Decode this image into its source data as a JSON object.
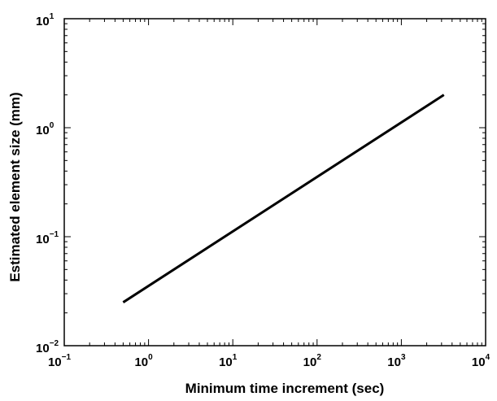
{
  "chart_data": {
    "type": "line",
    "xscale": "log",
    "yscale": "log",
    "xlim": [
      0.1,
      10000
    ],
    "ylim": [
      0.01,
      10
    ],
    "xlabel": "Minimum time increment (sec)",
    "ylabel": "Estimated element size (mm)",
    "grid": false,
    "line_color": "#000000",
    "x_ticks": [
      {
        "base": "10",
        "exp": "−1"
      },
      {
        "base": "10",
        "exp": "0"
      },
      {
        "base": "10",
        "exp": "1"
      },
      {
        "base": "10",
        "exp": "2"
      },
      {
        "base": "10",
        "exp": "3"
      },
      {
        "base": "10",
        "exp": "4"
      }
    ],
    "y_ticks": [
      {
        "base": "10",
        "exp": "−2"
      },
      {
        "base": "10",
        "exp": "−1"
      },
      {
        "base": "10",
        "exp": "0"
      },
      {
        "base": "10",
        "exp": "1"
      }
    ],
    "series": [
      {
        "x": [
          0.5,
          3200
        ],
        "y": [
          0.025,
          2.0
        ]
      }
    ]
  }
}
